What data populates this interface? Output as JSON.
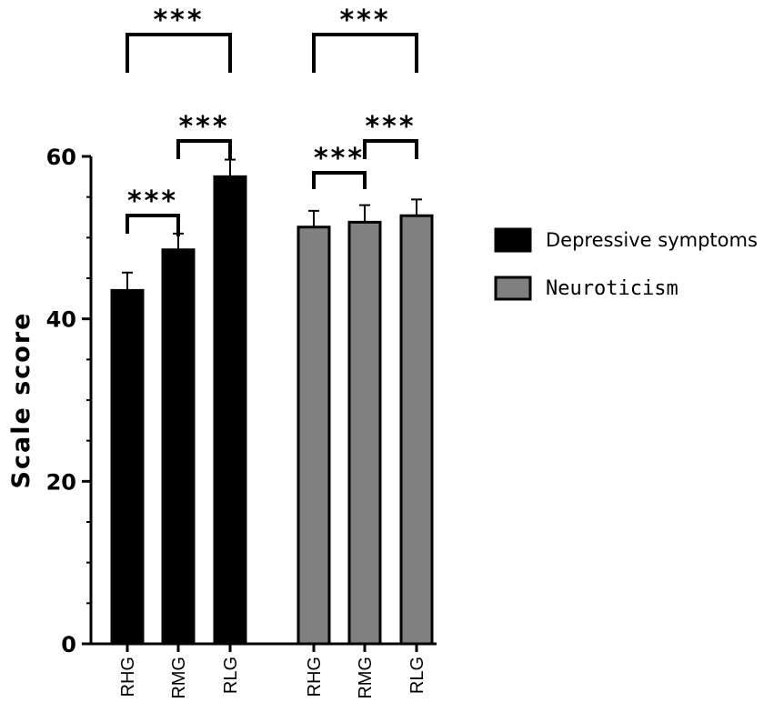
{
  "chart_data": {
    "type": "bar",
    "title": "",
    "xlabel": "",
    "ylabel": "Scale score",
    "ylim": [
      0,
      60
    ],
    "yticks": [
      0,
      20,
      40,
      60
    ],
    "grid": false,
    "legend_position": "right",
    "groups": [
      {
        "series": "Depressive symptoms",
        "color": "#000000",
        "categories": [
          "RHG",
          "RMG",
          "RLG"
        ],
        "values": [
          43.5,
          48.5,
          57.5
        ],
        "errors": [
          2.2,
          2.0,
          2.1
        ]
      },
      {
        "series": "Neuroticism",
        "color": "#808080",
        "categories": [
          "RHG",
          "RMG",
          "RLG"
        ],
        "values": [
          51.3,
          51.9,
          52.7
        ],
        "errors": [
          2.0,
          2.1,
          2.0
        ]
      }
    ],
    "legend": [
      {
        "label": "Depressive symptoms",
        "color": "#000000"
      },
      {
        "label": "Neuroticism",
        "color": "#808080"
      }
    ],
    "significance": [
      {
        "group": 0,
        "from": 0,
        "to": 1,
        "label": "***"
      },
      {
        "group": 0,
        "from": 1,
        "to": 2,
        "label": "***"
      },
      {
        "group": 0,
        "from": 0,
        "to": 2,
        "label": "***"
      },
      {
        "group": 1,
        "from": 0,
        "to": 1,
        "label": "***"
      },
      {
        "group": 1,
        "from": 1,
        "to": 2,
        "label": "***"
      },
      {
        "group": 1,
        "from": 0,
        "to": 2,
        "label": "***"
      }
    ]
  }
}
